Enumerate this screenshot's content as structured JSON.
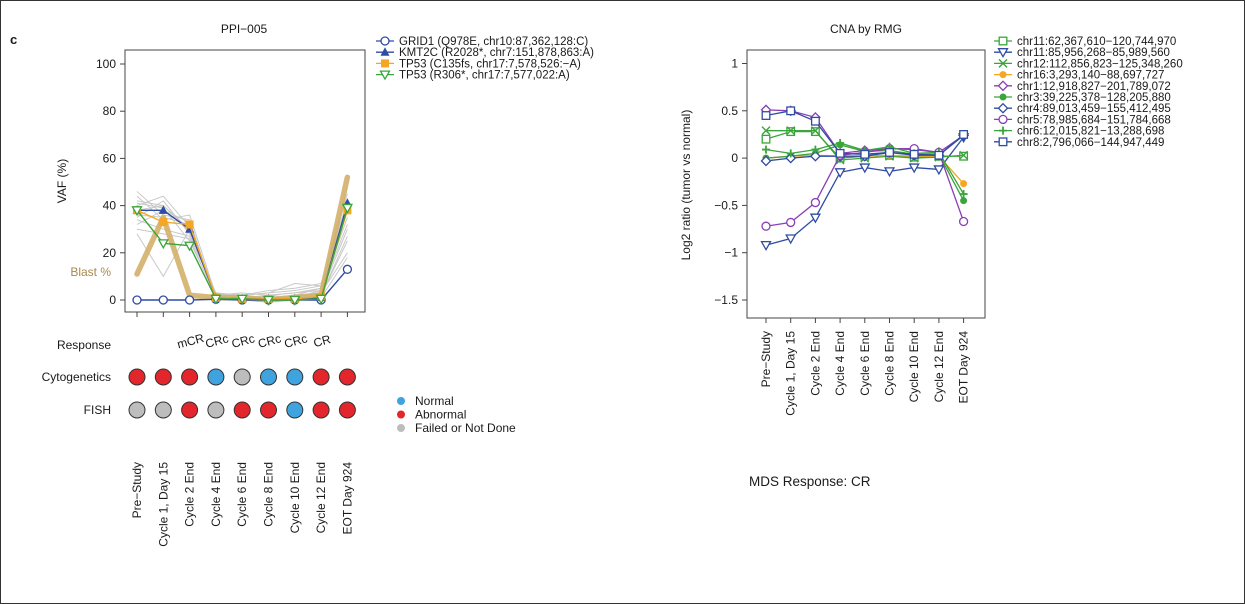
{
  "panel_label": "c",
  "response_caption": "MDS  Response: CR",
  "timepoints": [
    "Pre−Study",
    "Cycle 1, Day 15",
    "Cycle 2 End",
    "Cycle 4 End",
    "Cycle 6 End",
    "Cycle 8 End",
    "Cycle 10 End",
    "Cycle 12 End",
    "EOT Day 924"
  ],
  "colors": {
    "blue": "#2f4ca3",
    "orange": "#f5a623",
    "green": "#3aa53a",
    "purple": "#8a3fb5",
    "blast": "#d4b06a",
    "grey": "#c8c8c8",
    "normal": "#3fa3e0",
    "abnormal": "#e3262b",
    "failed": "#bdbdbd"
  },
  "chart_data": [
    {
      "type": "line",
      "title": "PPI−005",
      "ylabel": "VAF (%)",
      "xlabel": "",
      "ylim": [
        0,
        100
      ],
      "yticks": [
        0,
        20,
        40,
        60,
        80,
        100
      ],
      "legend_position": "right",
      "annotation": "Blast %",
      "blast_values": [
        11,
        35,
        2,
        1,
        1,
        0,
        1,
        2,
        52
      ],
      "series": [
        {
          "name": "GRID1 (Q978E, chr10:87,362,128:C)",
          "values": [
            0,
            0,
            0,
            0.3,
            0,
            0,
            0,
            0,
            13
          ],
          "color": "#2f4ca3",
          "marker": "circle-open"
        },
        {
          "name": "KMT2C (R2028*, chr7:151,878,863:A)",
          "values": [
            38,
            38,
            30,
            1,
            0.5,
            0.5,
            0.5,
            1,
            41
          ],
          "color": "#2f4ca3",
          "marker": "triangle-filled"
        },
        {
          "name": "TP53 (C135fs, chr17:7,578,526:−A)",
          "values": [
            38,
            33,
            32,
            1,
            0.5,
            0.5,
            0.5,
            1.5,
            38
          ],
          "color": "#f5a623",
          "marker": "square-filled"
        },
        {
          "name": "TP53 (R306*, chr17:7,577,022:A)",
          "values": [
            38,
            24,
            23,
            0.5,
            0.5,
            0,
            0,
            0.5,
            39
          ],
          "color": "#3aa53a",
          "marker": "triangle-down-open"
        }
      ],
      "background_lines": [
        [
          42,
          40,
          30,
          2,
          1,
          1,
          2,
          3,
          30
        ],
        [
          35,
          42,
          28,
          3,
          2,
          3,
          7,
          6,
          45
        ],
        [
          32,
          38,
          33,
          1,
          0,
          1,
          1,
          2,
          25
        ],
        [
          44,
          34,
          36,
          2,
          2,
          4,
          5,
          7,
          38
        ],
        [
          30,
          28,
          26,
          1,
          1,
          1,
          2,
          3,
          20
        ],
        [
          40,
          44,
          31,
          2,
          3,
          2,
          3,
          5,
          48
        ],
        [
          46,
          36,
          34,
          0,
          1,
          2,
          1,
          4,
          35
        ],
        [
          34,
          30,
          27,
          3,
          1,
          0,
          2,
          2,
          27
        ],
        [
          38,
          40,
          29,
          2,
          2,
          3,
          4,
          6,
          42
        ],
        [
          28,
          10,
          30,
          1,
          1,
          1,
          1,
          1,
          18
        ],
        [
          41,
          39,
          25,
          2,
          0,
          2,
          3,
          4,
          32
        ],
        [
          36,
          35,
          32,
          1,
          2,
          1,
          2,
          5,
          40
        ]
      ],
      "response": {
        "label": "Response",
        "values": [
          "",
          "",
          "mCR",
          "CRc",
          "CRc",
          "CRc",
          "CRc",
          "CR",
          ""
        ]
      },
      "cytogenetics": {
        "label": "Cytogenetics",
        "values": [
          "abnormal",
          "abnormal",
          "abnormal",
          "normal",
          "failed",
          "normal",
          "normal",
          "abnormal",
          "abnormal"
        ]
      },
      "fish": {
        "label": "FISH",
        "values": [
          "failed",
          "failed",
          "abnormal",
          "failed",
          "abnormal",
          "abnormal",
          "normal",
          "abnormal",
          "abnormal"
        ]
      },
      "status_legend": [
        {
          "key": "normal",
          "label": "Normal"
        },
        {
          "key": "abnormal",
          "label": "Abnormal"
        },
        {
          "key": "failed",
          "label": "Failed or Not Done"
        }
      ]
    },
    {
      "type": "line",
      "title": "CNA by RMG",
      "ylabel": "Log2 ratio (tumor vs normal)",
      "xlabel": "",
      "ylim": [
        -1.6,
        1.1
      ],
      "yticks": [
        -1.5,
        -1,
        -0.5,
        0,
        0.5,
        1
      ],
      "legend_position": "right",
      "series": [
        {
          "name": "chr11:62,367,610−120,744,970",
          "values": [
            0.2,
            0.28,
            0.28,
            0.0,
            0.02,
            0.03,
            0.01,
            0.02,
            0.02
          ],
          "color": "#3aa53a",
          "marker": "square-open"
        },
        {
          "name": "chr11:85,956,268−85,989,560",
          "values": [
            -0.92,
            -0.85,
            -0.63,
            -0.15,
            -0.1,
            -0.14,
            -0.1,
            -0.12,
            0.22
          ],
          "color": "#2f4ca3",
          "marker": "triangle-down-open"
        },
        {
          "name": "chr12:112,856,823−125,348,260",
          "values": [
            0.29,
            0.29,
            0.29,
            -0.02,
            0.0,
            0.02,
            0.0,
            0.01,
            0.03
          ],
          "color": "#3aa53a",
          "marker": "x"
        },
        {
          "name": "chr16:3,293,140−88,697,727",
          "values": [
            0.0,
            0.02,
            0.03,
            0.02,
            0.02,
            0.03,
            0.02,
            0.02,
            -0.27
          ],
          "color": "#f5a623",
          "marker": "circle-filled"
        },
        {
          "name": "chr1:12,918,827−201,789,072",
          "values": [
            0.51,
            0.5,
            0.43,
            0.05,
            0.08,
            0.1,
            0.09,
            0.06,
            0.24
          ],
          "color": "#8a3fb5",
          "marker": "diamond-open"
        },
        {
          "name": "chr3:39,225,378−128,205,880",
          "values": [
            0.0,
            0.02,
            0.05,
            0.14,
            0.07,
            0.08,
            0.04,
            0.04,
            -0.45
          ],
          "color": "#3aa53a",
          "marker": "circle-filled"
        },
        {
          "name": "chr4:89,013,459−155,412,495",
          "values": [
            -0.03,
            0.0,
            0.02,
            0.02,
            0.02,
            0.06,
            0.03,
            0.03,
            0.24
          ],
          "color": "#2f4ca3",
          "marker": "diamond-open"
        },
        {
          "name": "chr5:78,985,684−151,784,668",
          "values": [
            -0.72,
            -0.68,
            -0.47,
            0.03,
            0.06,
            0.1,
            0.1,
            0.06,
            -0.67
          ],
          "color": "#8a3fb5",
          "marker": "circle-open"
        },
        {
          "name": "chr6:12,015,821−13,288,698",
          "values": [
            0.09,
            0.05,
            0.09,
            0.16,
            0.08,
            0.12,
            0.05,
            0.06,
            -0.38
          ],
          "color": "#3aa53a",
          "marker": "plus-filled"
        },
        {
          "name": "chr8:2,796,066−144,947,449",
          "values": [
            0.45,
            0.5,
            0.39,
            0.05,
            0.04,
            0.06,
            0.04,
            0.03,
            0.25
          ],
          "color": "#2f4ca3",
          "marker": "square-open"
        }
      ]
    }
  ]
}
